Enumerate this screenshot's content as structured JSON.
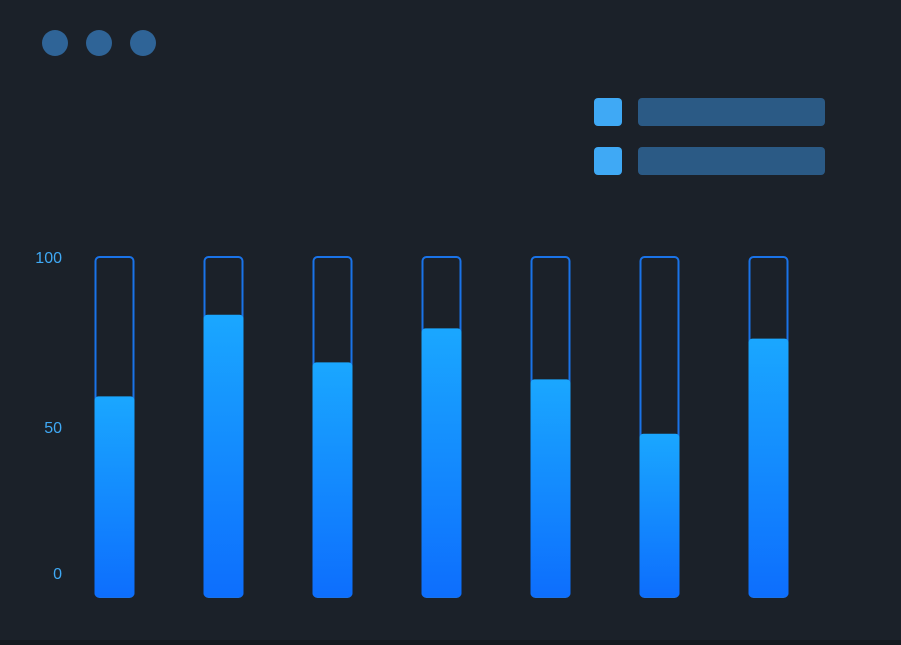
{
  "chart_data": {
    "type": "bar",
    "categories": [
      null,
      null,
      null,
      null,
      null,
      null,
      null
    ],
    "values": [
      59,
      83,
      69,
      79,
      64,
      48,
      76
    ],
    "color": "#1a8cff",
    "ylim": [
      0,
      100
    ],
    "yticks": [
      0,
      50,
      100
    ]
  }
}
